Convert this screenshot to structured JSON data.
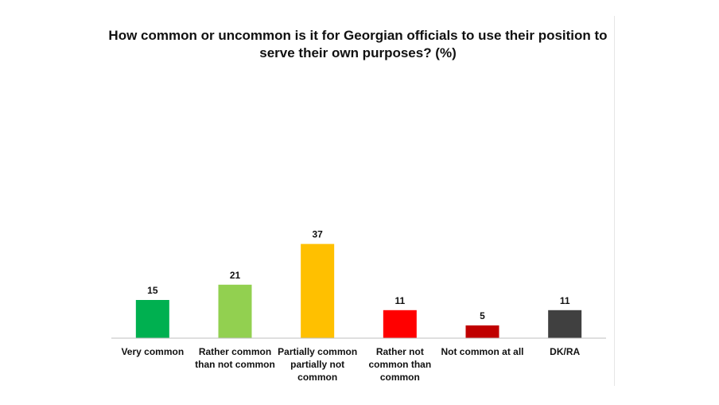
{
  "chart_data": {
    "type": "bar",
    "title": "How common or uncommon is it for Georgian officials to use their position to serve their own purposes? (%)",
    "categories": [
      [
        "Very common"
      ],
      [
        "Rather common",
        "than not common"
      ],
      [
        "Partially common",
        "partially not",
        "common"
      ],
      [
        "Rather not",
        "common than",
        "common"
      ],
      [
        "Not common at all"
      ],
      [
        "DK/RA"
      ]
    ],
    "values": [
      15,
      21,
      37,
      11,
      5,
      11
    ],
    "colors": [
      "#00b050",
      "#92d050",
      "#ffc000",
      "#ff0000",
      "#c00000",
      "#404040"
    ],
    "data_labels": true,
    "grid": false,
    "legend": "none"
  }
}
